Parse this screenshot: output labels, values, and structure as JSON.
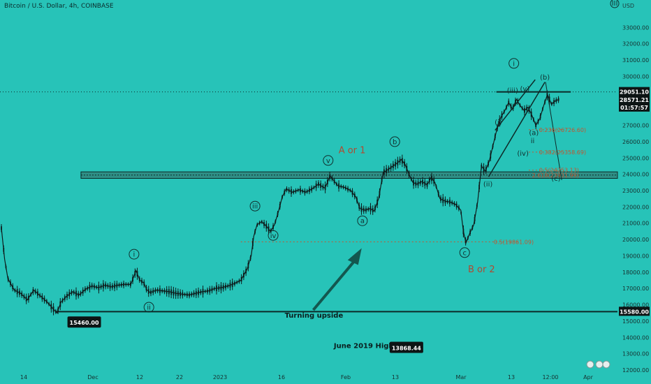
{
  "header": {
    "symbol_title": "Bitcoin / U.S. Dollar, 4h, COINBASE",
    "currency": "USD",
    "corner_label": "III"
  },
  "colors": {
    "background": "#27c3b8",
    "candles": "#0e1b1b",
    "zone_fill": "#2f8f86",
    "arrow": "#13574f",
    "fib_text": "#c2552f",
    "price_tag_bg": "#0d1414"
  },
  "chart_data": {
    "type": "candlestick",
    "y_axis": {
      "min": 12000,
      "max": 34000,
      "ticks": [
        12000,
        13000,
        14000,
        15000,
        16000,
        17000,
        18000,
        19000,
        20000,
        21000,
        22000,
        23000,
        24000,
        25000,
        26000,
        27000,
        28000,
        29000,
        30000,
        31000,
        32000,
        33000
      ],
      "tick_labels": [
        "12000.00",
        "13000.00",
        "14000.00",
        "15000.00",
        "16000.00",
        "17000.00",
        "18000.00",
        "19000.00",
        "20000.00",
        "21000.00",
        "22000.00",
        "23000.00",
        "24000.00",
        "25000.00",
        "26000.00",
        "27000.00",
        "28000.00",
        "29000.00",
        "30000.00",
        "31000.00",
        "32000.00",
        "33000.00"
      ]
    },
    "x_axis": {
      "tick_labels": [
        "14",
        "Dec",
        "12",
        "22",
        "2023",
        "16",
        "Feb",
        "13",
        "Mar",
        "13",
        "12:00",
        "Apr"
      ]
    },
    "price_path": [
      {
        "t": 0,
        "v": 20700
      },
      {
        "t": 0.5,
        "v": 18800
      },
      {
        "t": 1,
        "v": 17600
      },
      {
        "t": 2,
        "v": 16900
      },
      {
        "t": 3,
        "v": 16700
      },
      {
        "t": 4,
        "v": 16300
      },
      {
        "t": 5,
        "v": 16900
      },
      {
        "t": 6,
        "v": 16550
      },
      {
        "t": 7,
        "v": 16200
      },
      {
        "t": 8,
        "v": 15750
      },
      {
        "t": 8.6,
        "v": 15500
      },
      {
        "t": 9.2,
        "v": 16150
      },
      {
        "t": 10,
        "v": 16500
      },
      {
        "t": 11,
        "v": 16800
      },
      {
        "t": 12,
        "v": 16600
      },
      {
        "t": 13,
        "v": 16950
      },
      {
        "t": 14,
        "v": 17150
      },
      {
        "t": 15,
        "v": 17050
      },
      {
        "t": 16,
        "v": 17200
      },
      {
        "t": 17,
        "v": 17100
      },
      {
        "t": 18,
        "v": 17200
      },
      {
        "t": 19,
        "v": 17250
      },
      {
        "t": 20,
        "v": 17250
      },
      {
        "t": 20.8,
        "v": 18100
      },
      {
        "t": 21.4,
        "v": 17500
      },
      {
        "t": 22,
        "v": 17350
      },
      {
        "t": 22.5,
        "v": 16900
      },
      {
        "t": 23,
        "v": 16750
      },
      {
        "t": 24,
        "v": 16900
      },
      {
        "t": 25,
        "v": 16850
      },
      {
        "t": 26,
        "v": 16800
      },
      {
        "t": 27,
        "v": 16700
      },
      {
        "t": 28,
        "v": 16650
      },
      {
        "t": 29,
        "v": 16600
      },
      {
        "t": 30,
        "v": 16700
      },
      {
        "t": 31,
        "v": 16800
      },
      {
        "t": 32,
        "v": 16850
      },
      {
        "t": 33,
        "v": 17000
      },
      {
        "t": 34,
        "v": 17050
      },
      {
        "t": 35,
        "v": 17150
      },
      {
        "t": 36,
        "v": 17300
      },
      {
        "t": 37,
        "v": 17500
      },
      {
        "t": 38,
        "v": 18200
      },
      {
        "t": 38.6,
        "v": 19000
      },
      {
        "t": 39,
        "v": 20200
      },
      {
        "t": 39.5,
        "v": 20900
      },
      {
        "t": 40.2,
        "v": 21100
      },
      {
        "t": 41,
        "v": 20800
      },
      {
        "t": 41.6,
        "v": 20500
      },
      {
        "t": 42.2,
        "v": 20900
      },
      {
        "t": 42.8,
        "v": 21700
      },
      {
        "t": 43.4,
        "v": 22600
      },
      {
        "t": 44,
        "v": 23100
      },
      {
        "t": 45,
        "v": 22900
      },
      {
        "t": 46,
        "v": 23050
      },
      {
        "t": 47,
        "v": 22900
      },
      {
        "t": 48,
        "v": 23100
      },
      {
        "t": 49,
        "v": 23400
      },
      {
        "t": 50,
        "v": 23150
      },
      {
        "t": 50.8,
        "v": 23900
      },
      {
        "t": 51.4,
        "v": 23600
      },
      {
        "t": 52,
        "v": 23300
      },
      {
        "t": 53,
        "v": 23200
      },
      {
        "t": 54,
        "v": 23000
      },
      {
        "t": 54.8,
        "v": 22600
      },
      {
        "t": 55.4,
        "v": 21900
      },
      {
        "t": 56.2,
        "v": 21800
      },
      {
        "t": 57,
        "v": 21900
      },
      {
        "t": 57.6,
        "v": 21750
      },
      {
        "t": 58.3,
        "v": 22500
      },
      {
        "t": 59,
        "v": 24100
      },
      {
        "t": 59.8,
        "v": 24300
      },
      {
        "t": 60.5,
        "v": 24500
      },
      {
        "t": 61.2,
        "v": 24700
      },
      {
        "t": 61.8,
        "v": 24900
      },
      {
        "t": 62.4,
        "v": 24600
      },
      {
        "t": 63,
        "v": 24000
      },
      {
        "t": 63.6,
        "v": 23500
      },
      {
        "t": 64.2,
        "v": 23400
      },
      {
        "t": 65,
        "v": 23550
      },
      {
        "t": 65.8,
        "v": 23350
      },
      {
        "t": 66.4,
        "v": 23800
      },
      {
        "t": 67,
        "v": 23500
      },
      {
        "t": 67.8,
        "v": 22500
      },
      {
        "t": 68.6,
        "v": 22350
      },
      {
        "t": 69.4,
        "v": 22300
      },
      {
        "t": 70.2,
        "v": 22150
      },
      {
        "t": 71,
        "v": 21800
      },
      {
        "t": 71.4,
        "v": 20500
      },
      {
        "t": 71.8,
        "v": 19800
      },
      {
        "t": 72.4,
        "v": 20400
      },
      {
        "t": 73,
        "v": 20900
      },
      {
        "t": 73.6,
        "v": 22300
      },
      {
        "t": 74.2,
        "v": 24500
      },
      {
        "t": 74.8,
        "v": 24200
      },
      {
        "t": 75.4,
        "v": 24800
      },
      {
        "t": 76,
        "v": 25800
      },
      {
        "t": 76.6,
        "v": 26800
      },
      {
        "t": 77.2,
        "v": 27500
      },
      {
        "t": 77.8,
        "v": 27900
      },
      {
        "t": 78.4,
        "v": 28400
      },
      {
        "t": 79,
        "v": 28000
      },
      {
        "t": 79.6,
        "v": 28600
      },
      {
        "t": 80.2,
        "v": 28200
      },
      {
        "t": 80.8,
        "v": 27900
      },
      {
        "t": 81.4,
        "v": 28100
      },
      {
        "t": 82,
        "v": 27600
      },
      {
        "t": 82.6,
        "v": 27000
      },
      {
        "t": 83.2,
        "v": 27400
      },
      {
        "t": 83.8,
        "v": 28200
      },
      {
        "t": 84.4,
        "v": 28900
      },
      {
        "t": 85,
        "v": 28300
      },
      {
        "t": 85.6,
        "v": 28500
      },
      {
        "t": 86.2,
        "v": 28600
      }
    ],
    "horizontal_lines": [
      {
        "name": "resistance",
        "value": 29051.1
      },
      {
        "name": "support",
        "value": 15580.0
      }
    ],
    "zone": {
      "from": 23750,
      "to": 24150
    },
    "price_tags": [
      {
        "name": "resistance-tag",
        "value": 29051.1,
        "label": "29051.10"
      },
      {
        "name": "last-price-tag",
        "value": 28571.21,
        "label": "28571.21"
      },
      {
        "name": "countdown-tag",
        "value": 28100,
        "label": "01:57:57"
      },
      {
        "name": "support-tag",
        "value": 15580.0,
        "label": "15580.00"
      }
    ],
    "fib_levels": [
      {
        "label": "0.236(26726.60)",
        "value": 26726.6
      },
      {
        "label": "0.382(25358.69)",
        "value": 25358.69
      },
      {
        "label": "0.5(24253.13)",
        "value": 24253.13
      },
      {
        "label": "2.618(23931.99)",
        "value": 23931.99
      },
      {
        "label": "0.5(19861.09)",
        "value": 19861.09
      }
    ],
    "wave_labels": [
      {
        "text": "i",
        "t": 20.5,
        "v": 18950,
        "circled": true
      },
      {
        "text": "ii",
        "t": 22.8,
        "v": 15700,
        "circled": true
      },
      {
        "text": "iii",
        "t": 39.2,
        "v": 21900,
        "circled": true
      },
      {
        "text": "iv",
        "t": 42.0,
        "v": 20100,
        "circled": true
      },
      {
        "text": "v",
        "t": 50.5,
        "v": 24700,
        "circled": true
      },
      {
        "text": "a",
        "t": 55.8,
        "v": 21000,
        "circled": true
      },
      {
        "text": "b",
        "t": 60.8,
        "v": 25850,
        "circled": true
      },
      {
        "text": "c",
        "t": 71.6,
        "v": 19050,
        "circled": true
      },
      {
        "text": "i",
        "t": 79.2,
        "v": 30650,
        "circled": true
      },
      {
        "text": "ii",
        "t": 82.1,
        "v": 25900,
        "circled": false
      },
      {
        "text": "(i)",
        "t": 76.8,
        "v": 27050,
        "circled": false
      },
      {
        "text": "(ii)",
        "t": 75.2,
        "v": 23250,
        "circled": false
      },
      {
        "text": "(iii)",
        "t": 79.0,
        "v": 29000,
        "circled": false
      },
      {
        "text": "(iv)",
        "t": 80.6,
        "v": 25150,
        "circled": false
      },
      {
        "text": "(v)",
        "t": 80.9,
        "v": 29100,
        "circled": false
      },
      {
        "text": "(a)",
        "t": 82.3,
        "v": 26400,
        "circled": false
      },
      {
        "text": "(b)",
        "t": 84.0,
        "v": 29800,
        "circled": false
      },
      {
        "text": "(c)",
        "t": 85.7,
        "v": 23600,
        "circled": false
      }
    ],
    "annotations": [
      {
        "name": "a-or-1",
        "text": "A or 1",
        "t": 54.2,
        "v": 25300
      },
      {
        "name": "b-or-2",
        "text": "B or 2",
        "t": 74.2,
        "v": 18000
      },
      {
        "name": "turning-upside",
        "text": "Turning upside",
        "t": 48.3,
        "v": 15200
      },
      {
        "name": "june-2019-high",
        "text": "June 2019 High",
        "t": 56.0,
        "v": 13350
      }
    ],
    "boxed_labels": [
      {
        "name": "low-price-label",
        "text": "15460.00",
        "t": 12.8,
        "v": 14900
      },
      {
        "name": "june-high-price-label",
        "text": "13868.44",
        "t": 62.6,
        "v": 13350
      }
    ]
  }
}
